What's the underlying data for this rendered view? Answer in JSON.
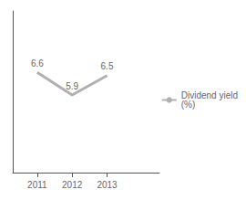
{
  "chart_data": {
    "type": "line",
    "x": [
      2011,
      2012,
      2013
    ],
    "series": [
      {
        "name": "Dividend yield\n(%)",
        "color": "#b0b0b0",
        "values": [
          6.6,
          5.9,
          6.5
        ]
      }
    ],
    "xlim": [
      2010.3,
      2014.5
    ],
    "xticks": [
      2011,
      2012,
      2013
    ],
    "ylim": [
      3.5,
      8.5
    ],
    "yticks": [],
    "tick_labels": "x",
    "grid": false,
    "legend": "right",
    "data_labels": true
  }
}
